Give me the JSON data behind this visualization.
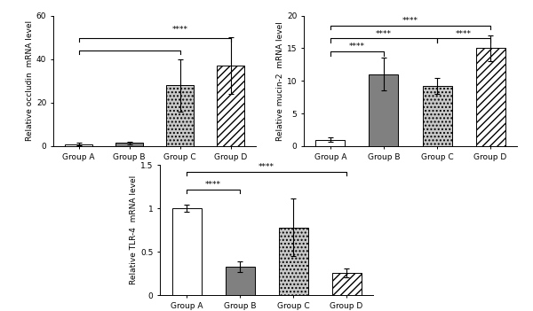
{
  "groups": [
    "Group A",
    "Group B",
    "Group C",
    "Group D"
  ],
  "ocl": {
    "values": [
      1.0,
      1.5,
      28.0,
      37.0
    ],
    "errors": [
      0.5,
      0.5,
      12.0,
      13.0
    ],
    "ylim": [
      0,
      60
    ],
    "yticks": [
      0,
      20,
      40,
      60
    ],
    "ylabel": "Relative occludin  mRNA level"
  },
  "muc2": {
    "values": [
      1.0,
      11.0,
      9.2,
      15.0
    ],
    "errors": [
      0.3,
      2.5,
      1.2,
      2.0
    ],
    "ylim": [
      0,
      20
    ],
    "yticks": [
      0,
      5,
      10,
      15,
      20
    ],
    "ylabel": "Relative mucin-2  mRNA level"
  },
  "tlr4": {
    "values": [
      1.0,
      0.33,
      0.78,
      0.26
    ],
    "errors": [
      0.04,
      0.06,
      0.33,
      0.05
    ],
    "ylim": [
      0,
      1.5
    ],
    "yticks": [
      0.0,
      0.5,
      1.0,
      1.5
    ],
    "ylabel": "Relative TLR-4  mRNA level"
  },
  "bar_colors": [
    "#ffffff",
    "#808080",
    "#c8c8c8",
    "#ffffff"
  ],
  "hatches": [
    null,
    null,
    "....",
    "////"
  ],
  "edge_color": "#000000",
  "bar_width": 0.55,
  "sig_fontsize": 6.5,
  "label_fontsize": 6.5,
  "tick_fontsize": 6.5
}
